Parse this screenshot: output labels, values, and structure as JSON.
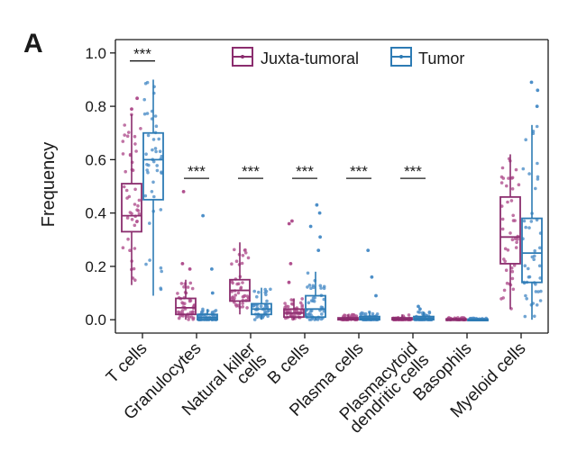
{
  "panel_label": "A",
  "colors": {
    "juxta": "#8B2D6E",
    "tumor": "#2D7BB4",
    "juxta_points": "#B0508E",
    "tumor_points": "#4D8FC8",
    "axis": "#1a1a1a"
  },
  "chart_data": {
    "type": "box",
    "ylabel": "Frequency",
    "xlabel": "",
    "ylim": [
      -0.05,
      1.05
    ],
    "yticks": [
      "0.0",
      "0.2",
      "0.4",
      "0.6",
      "0.8",
      "1.0"
    ],
    "grid": false,
    "legend_position": "top",
    "categories": [
      [
        "T cells"
      ],
      [
        "Granulocytes"
      ],
      [
        "Natural killer",
        "cells"
      ],
      [
        "B cells"
      ],
      [
        "Plasma cells"
      ],
      [
        "Plasmacytoid",
        "dendritic cells"
      ],
      [
        "Basophils"
      ],
      [
        "Myeloid cells"
      ]
    ],
    "series": [
      {
        "name": "Juxta-tumoral",
        "boxes": [
          {
            "min": 0.13,
            "q1": 0.33,
            "median": 0.39,
            "q3": 0.51,
            "max": 0.77
          },
          {
            "min": 0.0,
            "q1": 0.02,
            "median": 0.045,
            "q3": 0.08,
            "max": 0.15
          },
          {
            "min": 0.02,
            "q1": 0.07,
            "median": 0.11,
            "q3": 0.15,
            "max": 0.29
          },
          {
            "min": 0.0,
            "q1": 0.01,
            "median": 0.025,
            "q3": 0.04,
            "max": 0.08
          },
          {
            "min": 0.0,
            "q1": 0.0,
            "median": 0.003,
            "q3": 0.007,
            "max": 0.02
          },
          {
            "min": 0.0,
            "q1": 0.0,
            "median": 0.003,
            "q3": 0.007,
            "max": 0.02
          },
          {
            "min": 0.0,
            "q1": 0.0,
            "median": 0.001,
            "q3": 0.003,
            "max": 0.008
          },
          {
            "min": 0.04,
            "q1": 0.21,
            "median": 0.31,
            "q3": 0.46,
            "max": 0.62
          }
        ]
      },
      {
        "name": "Tumor",
        "boxes": [
          {
            "min": 0.09,
            "q1": 0.45,
            "median": 0.6,
            "q3": 0.7,
            "max": 0.9
          },
          {
            "min": 0.0,
            "q1": 0.0,
            "median": 0.008,
            "q3": 0.02,
            "max": 0.04
          },
          {
            "min": 0.0,
            "q1": 0.02,
            "median": 0.04,
            "q3": 0.06,
            "max": 0.12
          },
          {
            "min": 0.0,
            "q1": 0.01,
            "median": 0.04,
            "q3": 0.09,
            "max": 0.18
          },
          {
            "min": 0.0,
            "q1": 0.0,
            "median": 0.005,
            "q3": 0.012,
            "max": 0.03
          },
          {
            "min": 0.0,
            "q1": 0.0,
            "median": 0.005,
            "q3": 0.012,
            "max": 0.03
          },
          {
            "min": 0.0,
            "q1": 0.0,
            "median": 0.001,
            "q3": 0.002,
            "max": 0.006
          },
          {
            "min": 0.0,
            "q1": 0.14,
            "median": 0.25,
            "q3": 0.38,
            "max": 0.73
          }
        ]
      }
    ],
    "outliers": [
      {
        "category": 1,
        "series": 0,
        "values": [
          0.48,
          0.21,
          0.19
        ]
      },
      {
        "category": 1,
        "series": 1,
        "values": [
          0.39,
          0.19,
          0.1
        ]
      },
      {
        "category": 3,
        "series": 0,
        "values": [
          0.37,
          0.36,
          0.21,
          0.14
        ]
      },
      {
        "category": 3,
        "series": 1,
        "values": [
          0.43,
          0.4,
          0.35,
          0.31,
          0.26
        ]
      },
      {
        "category": 4,
        "series": 1,
        "values": [
          0.26,
          0.16,
          0.09
        ]
      },
      {
        "category": 5,
        "series": 1,
        "values": [
          0.05,
          0.04
        ]
      },
      {
        "category": 7,
        "series": 1,
        "values": [
          0.89,
          0.86,
          0.8
        ]
      },
      {
        "category": 0,
        "series": 0,
        "values": [
          0.83,
          0.79
        ]
      }
    ],
    "significance": [
      {
        "category": 0,
        "label": "***",
        "y": 0.97
      },
      {
        "category": 1,
        "label": "***",
        "y": 0.53
      },
      {
        "category": 2,
        "label": "***",
        "y": 0.53
      },
      {
        "category": 3,
        "label": "***",
        "y": 0.53
      },
      {
        "category": 4,
        "label": "***",
        "y": 0.53
      },
      {
        "category": 5,
        "label": "***",
        "y": 0.53
      }
    ]
  }
}
